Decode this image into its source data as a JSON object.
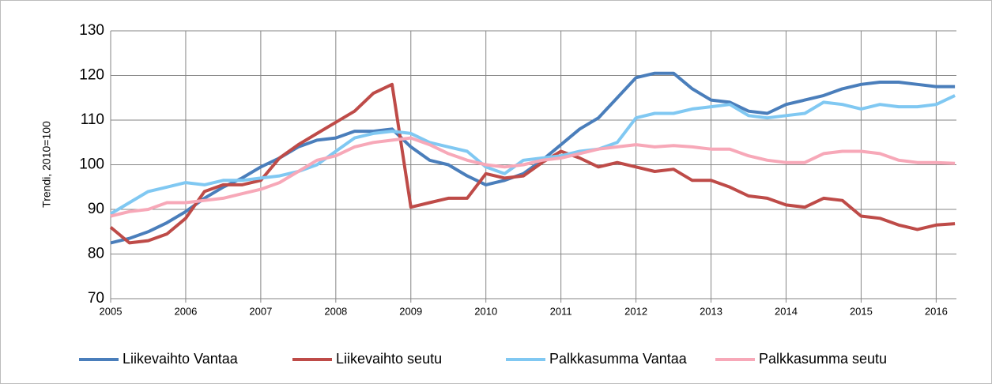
{
  "chart_data": {
    "type": "line",
    "y_label": "Trendi, 2010=100",
    "x": [
      2005,
      2005.25,
      2005.5,
      2005.75,
      2006,
      2006.25,
      2006.5,
      2006.75,
      2007,
      2007.25,
      2007.5,
      2007.75,
      2008,
      2008.25,
      2008.5,
      2008.75,
      2009,
      2009.25,
      2009.5,
      2009.75,
      2010,
      2010.25,
      2010.5,
      2010.75,
      2011,
      2011.25,
      2011.5,
      2011.75,
      2012,
      2012.25,
      2012.5,
      2012.75,
      2013,
      2013.25,
      2013.5,
      2013.75,
      2014,
      2014.25,
      2014.5,
      2014.75,
      2015,
      2015.25,
      2015.5,
      2015.75,
      2016,
      2016.25
    ],
    "series": [
      {
        "name": "Liikevaihto Vantaa",
        "color": "#4a7ebb",
        "values": [
          82.5,
          83.5,
          85,
          87,
          89.5,
          92.5,
          95,
          97,
          99.5,
          101.5,
          104,
          105.5,
          106,
          107.5,
          107.5,
          108,
          104,
          101,
          100,
          97.5,
          95.5,
          96.5,
          98,
          101,
          104.5,
          108,
          110.5,
          115,
          119.5,
          120.5,
          120.5,
          117,
          114.5,
          114,
          112,
          111.5,
          113.5,
          114.5,
          115.5,
          117,
          118,
          118.5,
          118.5,
          118,
          117.5,
          117.5
        ]
      },
      {
        "name": "Liikevaihto seutu",
        "color": "#be4b48",
        "values": [
          86,
          82.5,
          83,
          84.5,
          88,
          94,
          95.5,
          95.5,
          96.5,
          101.5,
          104.5,
          107,
          109.5,
          112,
          116,
          118,
          90.5,
          91.5,
          92.5,
          92.5,
          98,
          97,
          97.5,
          100.5,
          103,
          101.5,
          99.5,
          100.5,
          99.5,
          98.5,
          99,
          96.5,
          96.5,
          95,
          93,
          92.5,
          91,
          90.5,
          92.5,
          92,
          88.5,
          88,
          86.5,
          85.5,
          86.5,
          86.8
        ]
      },
      {
        "name": "Palkkasumma Vantaa",
        "color": "#80c8f2",
        "values": [
          89,
          91.5,
          94,
          95,
          96,
          95.5,
          96.5,
          96.5,
          97,
          97.5,
          98.5,
          100,
          103,
          106,
          107,
          107.5,
          107,
          105,
          104,
          103,
          99.5,
          98,
          101,
          101.5,
          102,
          103,
          103.5,
          105,
          110.5,
          111.5,
          111.5,
          112.5,
          113,
          113.5,
          111,
          110.5,
          111,
          111.5,
          114,
          113.5,
          112.5,
          113.5,
          113,
          113,
          113.5,
          115.5
        ]
      },
      {
        "name": "Palkkasumma seutu",
        "color": "#f7a8b8",
        "values": [
          88.5,
          89.5,
          90,
          91.5,
          91.5,
          92,
          92.5,
          93.5,
          94.5,
          96,
          98.5,
          101,
          102,
          104,
          105,
          105.5,
          106,
          104.5,
          102.5,
          101,
          100,
          99.5,
          100,
          101,
          101.5,
          102.5,
          103.5,
          104,
          104.5,
          104,
          104.3,
          104,
          103.5,
          103.5,
          102,
          101,
          100.5,
          100.5,
          102.5,
          103,
          103,
          102.5,
          101,
          100.5,
          100.5,
          100.3
        ]
      }
    ],
    "xlim": [
      2005,
      2016.27
    ],
    "xticks": [
      2005,
      2006,
      2007,
      2008,
      2009,
      2010,
      2011,
      2012,
      2013,
      2014,
      2015,
      2016
    ],
    "ylim": [
      70,
      130
    ],
    "yticks": [
      70,
      80,
      90,
      100,
      110,
      120,
      130
    ],
    "grid": true,
    "legend": "bottom"
  }
}
